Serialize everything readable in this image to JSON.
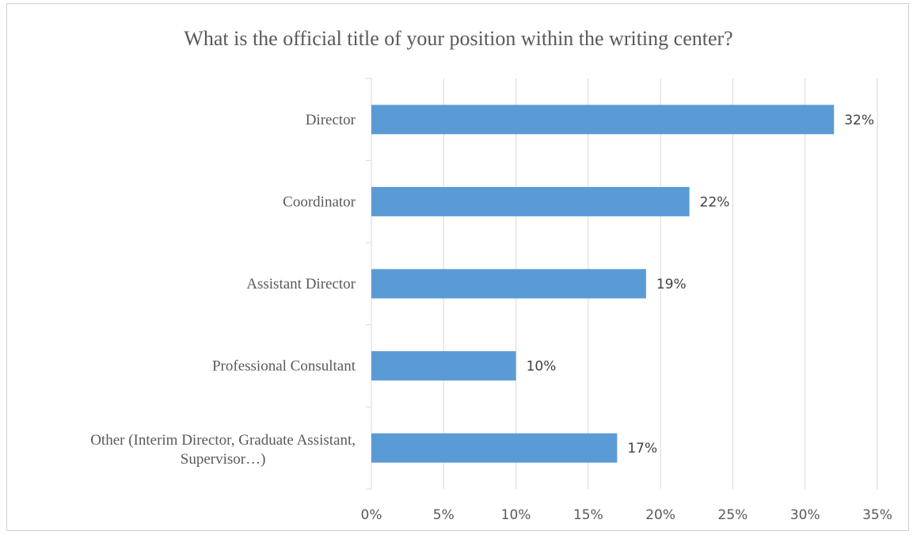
{
  "chart_data": {
    "type": "bar",
    "orientation": "horizontal",
    "title": "What is the official title of your position within the writing center?",
    "categories": [
      "Director",
      "Coordinator",
      "Assistant Director",
      "Professional Consultant",
      "Other (Interim Director, Graduate Assistant, Supervisor…)"
    ],
    "values": [
      32,
      22,
      19,
      10,
      17
    ],
    "data_labels": [
      "32%",
      "22%",
      "19%",
      "10%",
      "17%"
    ],
    "xlim": [
      0,
      35
    ],
    "x_ticks": [
      0,
      5,
      10,
      15,
      20,
      25,
      30,
      35
    ],
    "x_tick_labels": [
      "0%",
      "5%",
      "10%",
      "15%",
      "20%",
      "25%",
      "30%",
      "35%"
    ],
    "xlabel": "",
    "ylabel": "",
    "grid": true,
    "legend": "none",
    "bar_color": "#5b9bd5",
    "grid_color": "#d9d9d9"
  }
}
